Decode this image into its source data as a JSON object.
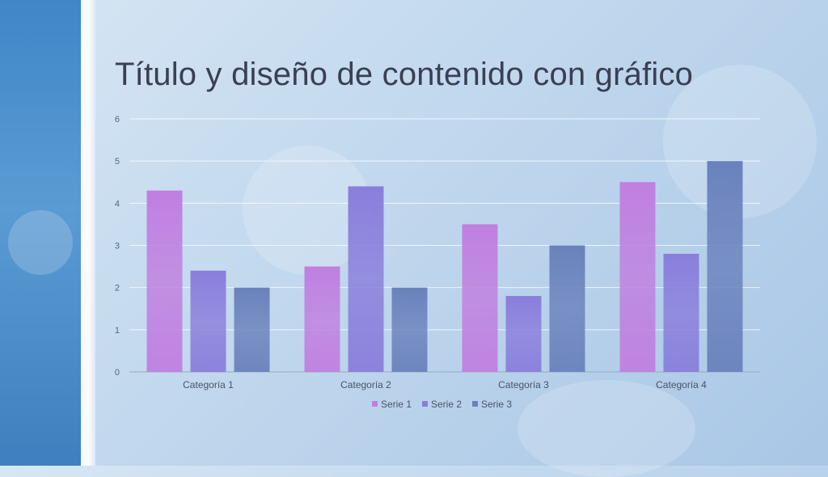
{
  "slide": {
    "title": "Título y diseño de contenido con gráfico"
  },
  "colors": {
    "serie1": "#c07fe0",
    "serie2": "#8a7edc",
    "serie3": "#6a82bc"
  },
  "chart_data": {
    "type": "bar",
    "categories": [
      "Categoría 1",
      "Categoría 2",
      "Categoría 3",
      "Categoría 4"
    ],
    "series": [
      {
        "name": "Serie 1",
        "values": [
          4.3,
          2.5,
          3.5,
          4.5
        ]
      },
      {
        "name": "Serie 2",
        "values": [
          2.4,
          4.4,
          1.8,
          2.8
        ]
      },
      {
        "name": "Serie 3",
        "values": [
          2.0,
          2.0,
          3.0,
          5.0
        ]
      }
    ],
    "ylim": [
      0,
      6
    ],
    "yticks": [
      0,
      1,
      2,
      3,
      4,
      5,
      6
    ],
    "grid": true,
    "legend": "bottom"
  }
}
